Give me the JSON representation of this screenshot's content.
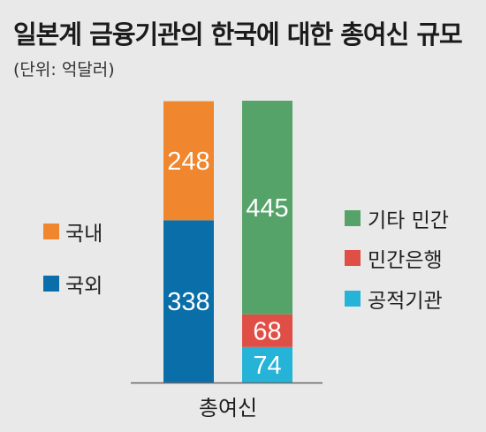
{
  "title": "일본계 금융기관의 한국에 대한 총여신 규모",
  "unit": "(단위: 억달러)",
  "colors": {
    "domestic": "#f0862e",
    "overseas": "#0a6fa8",
    "other_private": "#56a36a",
    "private_bank": "#df4f45",
    "public": "#26b3d8",
    "axis": "#666666"
  },
  "chart_data": {
    "type": "bar",
    "stacked": true,
    "categories": [
      "총여신"
    ],
    "stacks": [
      {
        "segments": [
          {
            "name": "국외",
            "value": 338,
            "color_key": "overseas"
          },
          {
            "name": "국내",
            "value": 248,
            "color_key": "domestic"
          }
        ]
      },
      {
        "segments": [
          {
            "name": "공적기관",
            "value": 74,
            "color_key": "public"
          },
          {
            "name": "민간은행",
            "value": 68,
            "color_key": "private_bank"
          },
          {
            "name": "기타 민간",
            "value": 445,
            "color_key": "other_private"
          }
        ]
      }
    ],
    "legend_left": [
      {
        "label": "국내",
        "color_key": "domestic"
      },
      {
        "label": "국외",
        "color_key": "overseas"
      }
    ],
    "legend_right": [
      {
        "label": "기타 민간",
        "color_key": "other_private"
      },
      {
        "label": "민간은행",
        "color_key": "private_bank"
      },
      {
        "label": "공적기관",
        "color_key": "public"
      }
    ],
    "xlabel": "총여신",
    "ylim": [
      0,
      587
    ],
    "grid": false,
    "legend_placement": "left and right"
  }
}
